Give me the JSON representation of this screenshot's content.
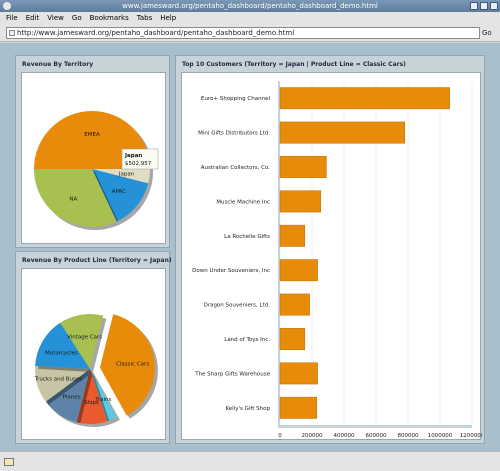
{
  "window": {
    "title": "www.jamesward.org/pentaho_dashboard/pentaho_dashboard_demo.html"
  },
  "menu": {
    "items": [
      {
        "label": "File",
        "key": "F"
      },
      {
        "label": "Edit",
        "key": "E"
      },
      {
        "label": "View",
        "key": "V"
      },
      {
        "label": "Go",
        "key": "G"
      },
      {
        "label": "Bookmarks",
        "key": "B"
      },
      {
        "label": "Tabs",
        "key": "T"
      },
      {
        "label": "Help",
        "key": "H"
      }
    ]
  },
  "address": {
    "url": "http://www.jamesward.org/pentaho_dashboard/pentaho_dashboard_demo.html",
    "go_label": "Go"
  },
  "panels": {
    "territory": {
      "title": "Revenue By Territory"
    },
    "product": {
      "title": "Revenue By Product Line (Territory = Japan)"
    },
    "customers": {
      "title": "Top 10 Customers (Territory = Japan | Product Line = Classic Cars)"
    }
  },
  "chart_data": [
    {
      "type": "pie",
      "title": "Revenue By Territory",
      "labels": [
        "EMEA",
        "Japan",
        "APAC",
        "NA"
      ],
      "values": [
        50,
        4,
        14,
        32
      ],
      "colors": [
        "#e98b0a",
        "#e0dcc6",
        "#2592d8",
        "#a7c050"
      ],
      "exploded": "Japan",
      "tooltip": {
        "label": "Japan",
        "value": "$502,957"
      }
    },
    {
      "type": "pie",
      "title": "Revenue By Product Line (Territory = Japan)",
      "labels": [
        "Classic Cars",
        "Trains",
        "Ships",
        "Planes",
        "Trucks and Buses",
        "Motorcycles",
        "Vintage Cars"
      ],
      "values": [
        38,
        3,
        9,
        11,
        11,
        15,
        13
      ],
      "colors": [
        "#e98b0a",
        "#5ec8e0",
        "#ea5a2e",
        "#5d84a8",
        "#c8c4a6",
        "#2592d8",
        "#a7c050"
      ],
      "exploded": "Classic Cars"
    },
    {
      "type": "bar",
      "orientation": "horizontal",
      "title": "Top 10 Customers (Territory = Japan | Product Line = Classic Cars)",
      "categories": [
        "Euro+ Shopping Channel",
        "Mini Gifts Distributors Ltd.",
        "Australian Collectors, Co.",
        "Muscle Machine Inc",
        "La Rochelle Gifts",
        "Down Under Souveniers, Inc",
        "Dragon Souveniers, Ltd.",
        "Land of Toys Inc.",
        "The Sharp Gifts Warehouse",
        "Kelly's Gift Shop"
      ],
      "values": [
        1060000,
        780000,
        290000,
        255000,
        155000,
        235000,
        185000,
        155000,
        235000,
        230000
      ],
      "xlim": [
        0,
        1200000
      ],
      "ticks": [
        "0",
        "200000",
        "400000",
        "600000",
        "800000",
        "1000000",
        "1200000"
      ],
      "bar_color": "#e98b0a",
      "grid": true
    }
  ]
}
